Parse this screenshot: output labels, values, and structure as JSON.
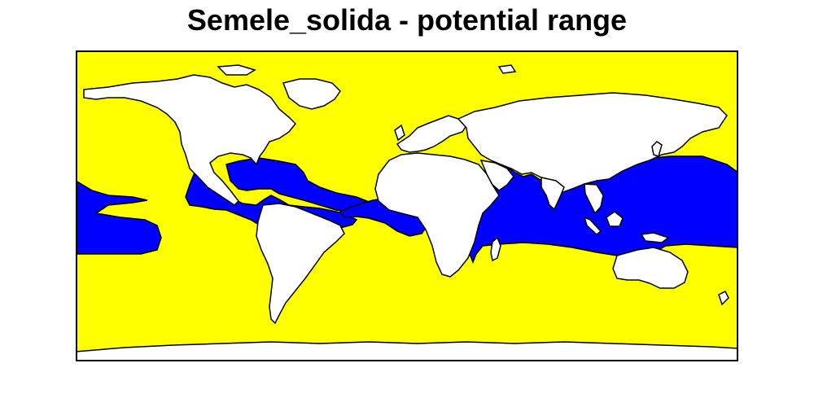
{
  "title": "Semele_solida - potential range",
  "legend_colors": {
    "unsuitable_ocean": "#ffff00",
    "potential_range": "#0000ff",
    "land": "#ffffff",
    "coastline": "#000000"
  },
  "map": {
    "projection": "equirectangular",
    "extent": {
      "lon": [
        -180,
        180
      ],
      "lat": [
        -84,
        84
      ]
    }
  }
}
